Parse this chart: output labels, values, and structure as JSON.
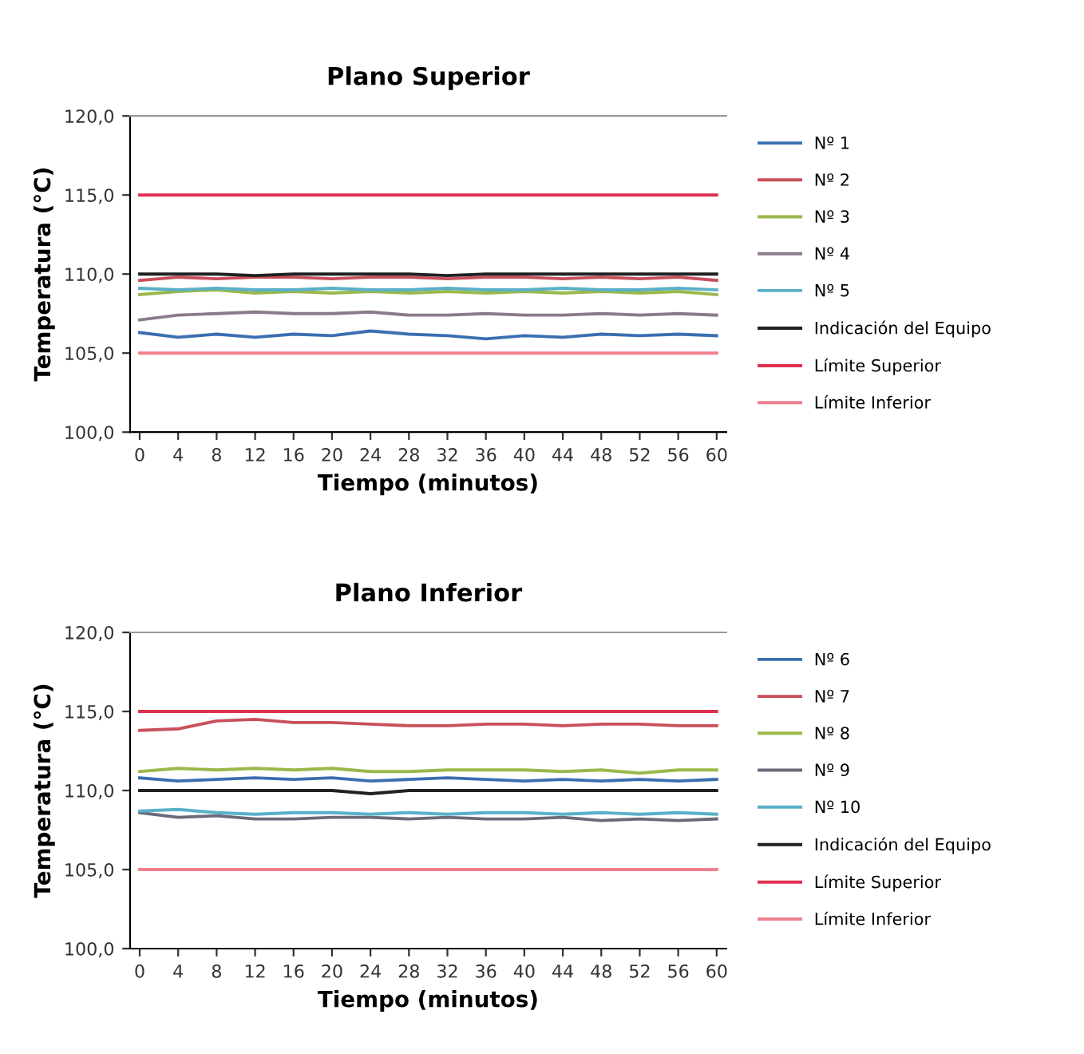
{
  "chart_data": [
    {
      "type": "line",
      "title": "Plano Superior",
      "xlabel": "Tiempo (minutos)",
      "ylabel": "Temperatura (°C)",
      "x": [
        0,
        4,
        8,
        12,
        16,
        20,
        24,
        28,
        32,
        36,
        40,
        44,
        48,
        52,
        56,
        60
      ],
      "xlim": [
        -1,
        61
      ],
      "xticks": [
        0,
        4,
        8,
        12,
        16,
        20,
        24,
        28,
        32,
        36,
        40,
        44,
        48,
        52,
        56,
        60
      ],
      "ylim": [
        100,
        120
      ],
      "yticks": [
        {
          "value": 100,
          "label": "100,0"
        },
        {
          "value": 105,
          "label": "105,0"
        },
        {
          "value": 110,
          "label": "110,0"
        },
        {
          "value": 115,
          "label": "115,0"
        },
        {
          "value": 120,
          "label": "120,0"
        }
      ],
      "grid": false,
      "legend": "right",
      "marker": "none",
      "line_style": "solid",
      "series": [
        {
          "name": "Nº 1",
          "color": "#3a6fb0",
          "values": [
            106.3,
            106.0,
            106.2,
            106.0,
            106.2,
            106.1,
            106.4,
            106.2,
            106.1,
            105.9,
            106.1,
            106.0,
            106.2,
            106.1,
            106.2,
            106.1
          ]
        },
        {
          "name": "Nº 2",
          "color": "#c8505a",
          "values": [
            109.6,
            109.8,
            109.7,
            109.8,
            109.8,
            109.7,
            109.8,
            109.8,
            109.7,
            109.8,
            109.8,
            109.7,
            109.8,
            109.7,
            109.8,
            109.6
          ]
        },
        {
          "name": "Nº 3",
          "color": "#9ab84a",
          "values": [
            108.7,
            108.9,
            109.0,
            108.8,
            108.9,
            108.8,
            108.9,
            108.8,
            108.9,
            108.8,
            108.9,
            108.8,
            108.9,
            108.8,
            108.9,
            108.7
          ]
        },
        {
          "name": "Nº 4",
          "color": "#8a7a8a",
          "values": [
            107.1,
            107.4,
            107.5,
            107.6,
            107.5,
            107.5,
            107.6,
            107.4,
            107.4,
            107.5,
            107.4,
            107.4,
            107.5,
            107.4,
            107.5,
            107.4
          ]
        },
        {
          "name": "Nº 5",
          "color": "#5ab0c8",
          "values": [
            109.1,
            109.0,
            109.1,
            109.0,
            109.0,
            109.1,
            109.0,
            109.0,
            109.1,
            109.0,
            109.0,
            109.1,
            109.0,
            109.0,
            109.1,
            109.0
          ]
        },
        {
          "name": "Indicación del Equipo",
          "color": "#202020",
          "values": [
            110.0,
            110.0,
            110.0,
            109.9,
            110.0,
            110.0,
            110.0,
            110.0,
            109.9,
            110.0,
            110.0,
            110.0,
            110.0,
            110.0,
            110.0,
            110.0
          ]
        },
        {
          "name": "Límite Superior",
          "color": "#e03050",
          "values": [
            115,
            115,
            115,
            115,
            115,
            115,
            115,
            115,
            115,
            115,
            115,
            115,
            115,
            115,
            115,
            115
          ]
        },
        {
          "name": "Límite Inferior",
          "color": "#f08090",
          "values": [
            105,
            105,
            105,
            105,
            105,
            105,
            105,
            105,
            105,
            105,
            105,
            105,
            105,
            105,
            105,
            105
          ]
        }
      ]
    },
    {
      "type": "line",
      "title": "Plano Inferior",
      "xlabel": "Tiempo (minutos)",
      "ylabel": "Temperatura (°C)",
      "x": [
        0,
        4,
        8,
        12,
        16,
        20,
        24,
        28,
        32,
        36,
        40,
        44,
        48,
        52,
        56,
        60
      ],
      "xlim": [
        -1,
        61
      ],
      "xticks": [
        0,
        4,
        8,
        12,
        16,
        20,
        24,
        28,
        32,
        36,
        40,
        44,
        48,
        52,
        56,
        60
      ],
      "ylim": [
        100,
        120
      ],
      "yticks": [
        {
          "value": 100,
          "label": "100,0"
        },
        {
          "value": 105,
          "label": "105,0"
        },
        {
          "value": 110,
          "label": "110,0"
        },
        {
          "value": 115,
          "label": "115,0"
        },
        {
          "value": 120,
          "label": "120,0"
        }
      ],
      "grid": false,
      "legend": "right",
      "marker": "none",
      "line_style": "solid",
      "series": [
        {
          "name": "Nº 6",
          "color": "#3a6fb0",
          "values": [
            110.8,
            110.6,
            110.7,
            110.8,
            110.7,
            110.8,
            110.6,
            110.7,
            110.8,
            110.7,
            110.6,
            110.7,
            110.6,
            110.7,
            110.6,
            110.7
          ]
        },
        {
          "name": "Nº 7",
          "color": "#c8505a",
          "values": [
            113.8,
            113.9,
            114.4,
            114.5,
            114.3,
            114.3,
            114.2,
            114.1,
            114.1,
            114.2,
            114.2,
            114.1,
            114.2,
            114.2,
            114.1,
            114.1
          ]
        },
        {
          "name": "Nº 8",
          "color": "#9ab84a",
          "values": [
            111.2,
            111.4,
            111.3,
            111.4,
            111.3,
            111.4,
            111.2,
            111.2,
            111.3,
            111.3,
            111.3,
            111.2,
            111.3,
            111.1,
            111.3,
            111.3
          ]
        },
        {
          "name": "Nº 9",
          "color": "#6a6a7a",
          "values": [
            108.6,
            108.3,
            108.4,
            108.2,
            108.2,
            108.3,
            108.3,
            108.2,
            108.3,
            108.2,
            108.2,
            108.3,
            108.1,
            108.2,
            108.1,
            108.2
          ]
        },
        {
          "name": "Nº 10",
          "color": "#5ab0c8",
          "values": [
            108.7,
            108.8,
            108.6,
            108.5,
            108.6,
            108.6,
            108.5,
            108.6,
            108.5,
            108.6,
            108.6,
            108.5,
            108.6,
            108.5,
            108.6,
            108.5
          ]
        },
        {
          "name": "Indicación del Equipo",
          "color": "#202020",
          "values": [
            110.0,
            110.0,
            110.0,
            110.0,
            110.0,
            110.0,
            109.8,
            110.0,
            110.0,
            110.0,
            110.0,
            110.0,
            110.0,
            110.0,
            110.0,
            110.0
          ]
        },
        {
          "name": "Límite Superior",
          "color": "#e03050",
          "values": [
            115,
            115,
            115,
            115,
            115,
            115,
            115,
            115,
            115,
            115,
            115,
            115,
            115,
            115,
            115,
            115
          ]
        },
        {
          "name": "Límite Inferior",
          "color": "#f08090",
          "values": [
            105,
            105,
            105,
            105,
            105,
            105,
            105,
            105,
            105,
            105,
            105,
            105,
            105,
            105,
            105,
            105
          ]
        }
      ]
    }
  ]
}
